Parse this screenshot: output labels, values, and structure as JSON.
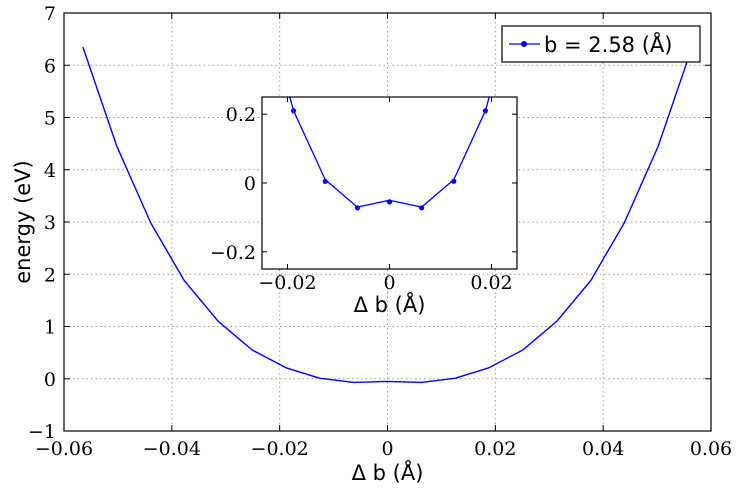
{
  "chart_data": [
    {
      "id": "main",
      "type": "line",
      "xlabel": "Δ b (Å)",
      "ylabel": "energy (eV)",
      "xlim": [
        -0.06,
        0.06
      ],
      "ylim": [
        -1,
        7
      ],
      "xticks": [
        -0.06,
        -0.04,
        -0.02,
        0,
        0.02,
        0.04,
        0.06
      ],
      "xtick_labels": [
        "−0.06",
        "−0.04",
        "−0.02",
        "0",
        "0.02",
        "0.04",
        "0.06"
      ],
      "yticks": [
        -1,
        0,
        1,
        2,
        3,
        4,
        5,
        6,
        7
      ],
      "ytick_labels": [
        "−1",
        "0",
        "1",
        "2",
        "3",
        "4",
        "5",
        "6",
        "7"
      ],
      "grid": true,
      "legend": "top-right",
      "series": [
        {
          "name": "b = 2.58 (Å)",
          "color": "#0000ff",
          "marker": "circle",
          "x": [
            -0.0565,
            -0.0502,
            -0.0439,
            -0.0377,
            -0.0314,
            -0.0251,
            -0.0188,
            -0.0126,
            -0.0063,
            0,
            0.0063,
            0.0126,
            0.0188,
            0.0251,
            0.0314,
            0.0377,
            0.0439,
            0.0502,
            0.0565
          ],
          "y": [
            6.35,
            4.45,
            2.98,
            1.88,
            1.1,
            0.55,
            0.21,
            0.01,
            -0.07,
            -0.05,
            -0.07,
            0.01,
            0.21,
            0.55,
            1.1,
            1.88,
            2.98,
            4.45,
            6.35
          ]
        }
      ]
    },
    {
      "id": "inset",
      "type": "line",
      "xlabel": "Δ b (Å)",
      "ylabel": "",
      "xlim": [
        -0.025,
        0.025
      ],
      "ylim": [
        -0.25,
        0.25
      ],
      "xticks": [
        -0.02,
        0,
        0.02
      ],
      "xtick_labels": [
        "−0.02",
        "0",
        "0.02"
      ],
      "yticks": [
        -0.2,
        0,
        0.2
      ],
      "ytick_labels": [
        "−0.2",
        "0",
        "0.2"
      ],
      "grid": false,
      "series": [
        {
          "color": "#0000ff",
          "marker": "circle",
          "x": [
            -0.0188,
            -0.0126,
            -0.0063,
            0,
            0.0063,
            0.0126,
            0.0188
          ],
          "y": [
            0.21,
            0.005,
            -0.072,
            -0.055,
            -0.072,
            0.005,
            0.21
          ]
        }
      ]
    }
  ]
}
